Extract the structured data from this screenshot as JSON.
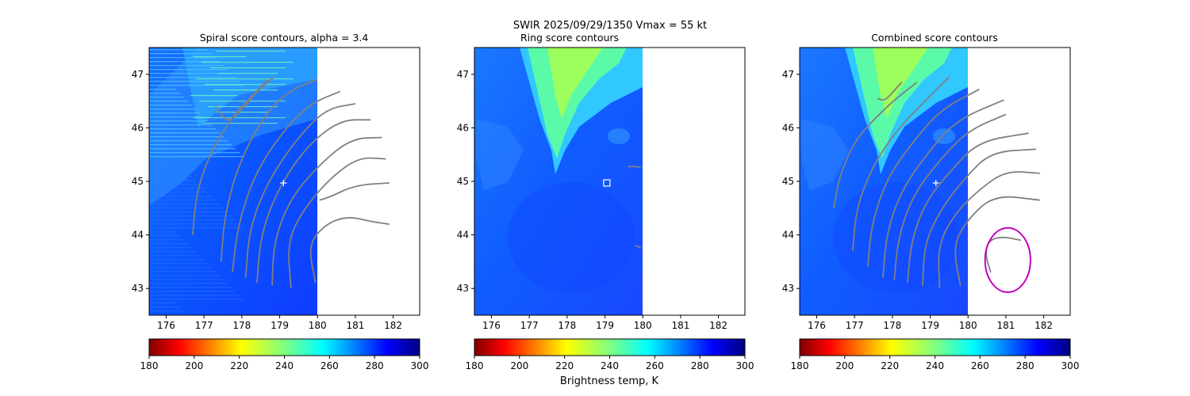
{
  "figure": {
    "suptitle_line1": "SWIR  2025/09/29/1350    Vmax = 55 kt",
    "colorbar_label": "Brightness temp, K"
  },
  "colors": {
    "contour": "#808080",
    "center_marker": "#ffffff",
    "circle": "#c000c0",
    "background": "#ffffff"
  },
  "colormap": {
    "name": "jet_r",
    "range": [
      180,
      300
    ],
    "ticks": [
      180,
      200,
      220,
      240,
      260,
      280,
      300
    ]
  },
  "chart_data": [
    {
      "type": "heatmap",
      "title": "Spiral score contours, alpha =  3.4",
      "xlim": [
        175.55,
        182.7
      ],
      "ylim": [
        42.5,
        47.5
      ],
      "xticks": [
        176,
        177,
        178,
        179,
        180,
        181,
        182
      ],
      "yticks": [
        43,
        44,
        45,
        46,
        47
      ],
      "image_extent_lon": [
        175.55,
        180.0
      ],
      "center": {
        "lon": 179.1,
        "lat": 44.97
      },
      "striped": true,
      "contours": [
        [
          [
            176.7,
            44.0
          ],
          [
            176.8,
            44.8
          ],
          [
            177.2,
            45.6
          ],
          [
            177.8,
            46.25
          ],
          [
            178.2,
            46.55
          ],
          [
            178.7,
            46.9
          ]
        ],
        [
          [
            177.45,
            43.5
          ],
          [
            177.55,
            44.4
          ],
          [
            177.95,
            45.4
          ],
          [
            178.7,
            46.35
          ],
          [
            179.4,
            46.75
          ],
          [
            180.0,
            46.9
          ]
        ],
        [
          [
            177.75,
            43.3
          ],
          [
            177.9,
            44.2
          ],
          [
            178.35,
            45.15
          ],
          [
            179.1,
            45.95
          ],
          [
            179.8,
            46.45
          ],
          [
            180.6,
            46.68
          ]
        ],
        [
          [
            178.1,
            43.2
          ],
          [
            178.2,
            44.1
          ],
          [
            178.65,
            44.95
          ],
          [
            179.4,
            45.75
          ],
          [
            180.2,
            46.35
          ],
          [
            181.0,
            46.45
          ]
        ],
        [
          [
            178.4,
            43.1
          ],
          [
            178.5,
            44.0
          ],
          [
            178.95,
            44.85
          ],
          [
            179.7,
            45.65
          ],
          [
            180.6,
            46.15
          ],
          [
            181.4,
            46.15
          ]
        ],
        [
          [
            178.8,
            43.05
          ],
          [
            178.85,
            43.9
          ],
          [
            179.3,
            44.7
          ],
          [
            180.1,
            45.35
          ],
          [
            180.9,
            45.8
          ],
          [
            181.7,
            45.82
          ]
        ],
        [
          [
            179.3,
            43.0
          ],
          [
            179.2,
            43.9
          ],
          [
            179.7,
            44.55
          ],
          [
            180.4,
            45.1
          ],
          [
            181.1,
            45.45
          ],
          [
            181.8,
            45.42
          ]
        ],
        [
          [
            179.95,
            43.1
          ],
          [
            179.75,
            43.8
          ],
          [
            180.2,
            44.2
          ],
          [
            180.8,
            44.35
          ],
          [
            181.4,
            44.25
          ],
          [
            181.9,
            44.2
          ]
        ],
        [
          [
            180.05,
            44.65
          ],
          [
            180.3,
            44.7
          ],
          [
            181.0,
            44.93
          ],
          [
            181.9,
            44.97
          ]
        ],
        [
          [
            177.3,
            46.4
          ],
          [
            177.45,
            46.25
          ],
          [
            177.65,
            46.1
          ],
          [
            178.0,
            46.35
          ],
          [
            178.5,
            46.75
          ],
          [
            178.85,
            46.95
          ]
        ]
      ],
      "circle": null
    },
    {
      "type": "heatmap",
      "title": "Ring score contours",
      "xlim": [
        175.55,
        182.7
      ],
      "ylim": [
        42.5,
        47.5
      ],
      "xticks": [
        176,
        177,
        178,
        179,
        180,
        181,
        182
      ],
      "yticks": [
        43,
        44,
        45,
        46,
        47
      ],
      "image_extent_lon": [
        175.55,
        180.0
      ],
      "center": {
        "lon": 179.05,
        "lat": 44.97
      },
      "striped": false,
      "contours": [
        [
          [
            179.6,
            45.27
          ],
          [
            179.75,
            45.28
          ],
          [
            179.9,
            45.27
          ],
          [
            179.95,
            45.25
          ]
        ],
        [
          [
            179.8,
            43.8
          ],
          [
            179.9,
            43.78
          ],
          [
            179.95,
            43.75
          ]
        ]
      ],
      "circle": null
    },
    {
      "type": "heatmap",
      "title": "Combined score contours",
      "xlim": [
        175.55,
        182.7
      ],
      "ylim": [
        42.5,
        47.5
      ],
      "xticks": [
        176,
        177,
        178,
        179,
        180,
        181,
        182
      ],
      "yticks": [
        43,
        44,
        45,
        46,
        47
      ],
      "image_extent_lon": [
        175.55,
        180.0
      ],
      "center": {
        "lon": 179.15,
        "lat": 44.97
      },
      "striped": false,
      "contours": [
        [
          [
            176.45,
            44.5
          ],
          [
            176.6,
            45.1
          ],
          [
            177.0,
            45.75
          ],
          [
            177.5,
            46.15
          ],
          [
            178.1,
            46.55
          ],
          [
            178.65,
            46.85
          ]
        ],
        [
          [
            176.95,
            43.7
          ],
          [
            177.05,
            44.5
          ],
          [
            177.45,
            45.25
          ],
          [
            178.1,
            45.95
          ],
          [
            179.0,
            46.6
          ],
          [
            179.5,
            46.95
          ]
        ],
        [
          [
            177.35,
            43.4
          ],
          [
            177.45,
            44.2
          ],
          [
            177.85,
            45.05
          ],
          [
            178.55,
            45.75
          ],
          [
            179.3,
            46.35
          ],
          [
            180.3,
            46.72
          ]
        ],
        [
          [
            177.75,
            43.2
          ],
          [
            177.85,
            44.05
          ],
          [
            178.25,
            44.85
          ],
          [
            178.95,
            45.55
          ],
          [
            179.7,
            46.15
          ],
          [
            180.95,
            46.52
          ]
        ],
        [
          [
            178.05,
            43.15
          ],
          [
            178.15,
            43.95
          ],
          [
            178.55,
            44.75
          ],
          [
            179.25,
            45.4
          ],
          [
            180.0,
            45.95
          ],
          [
            181.0,
            46.25
          ]
        ],
        [
          [
            178.4,
            43.1
          ],
          [
            178.5,
            43.9
          ],
          [
            178.9,
            44.65
          ],
          [
            179.6,
            45.25
          ],
          [
            180.3,
            45.75
          ],
          [
            181.6,
            45.9
          ]
        ],
        [
          [
            178.8,
            43.05
          ],
          [
            178.85,
            43.85
          ],
          [
            179.3,
            44.5
          ],
          [
            179.9,
            45.05
          ],
          [
            180.6,
            45.55
          ],
          [
            181.8,
            45.6
          ]
        ],
        [
          [
            179.25,
            43.0
          ],
          [
            179.2,
            43.8
          ],
          [
            179.65,
            44.4
          ],
          [
            180.3,
            44.85
          ],
          [
            181.0,
            45.2
          ],
          [
            181.9,
            45.15
          ]
        ],
        [
          [
            179.8,
            43.05
          ],
          [
            179.6,
            43.8
          ],
          [
            180.0,
            44.3
          ],
          [
            180.7,
            44.75
          ],
          [
            181.9,
            44.65
          ]
        ],
        [
          [
            177.6,
            46.55
          ],
          [
            177.8,
            46.5
          ],
          [
            178.05,
            46.7
          ],
          [
            178.25,
            46.85
          ]
        ],
        [
          [
            180.6,
            43.3
          ],
          [
            180.45,
            43.65
          ],
          [
            180.55,
            43.9
          ],
          [
            180.9,
            43.97
          ],
          [
            181.4,
            43.9
          ]
        ]
      ],
      "circle": {
        "lon": 181.05,
        "lat": 43.53,
        "radius_deg": 0.6
      }
    }
  ]
}
